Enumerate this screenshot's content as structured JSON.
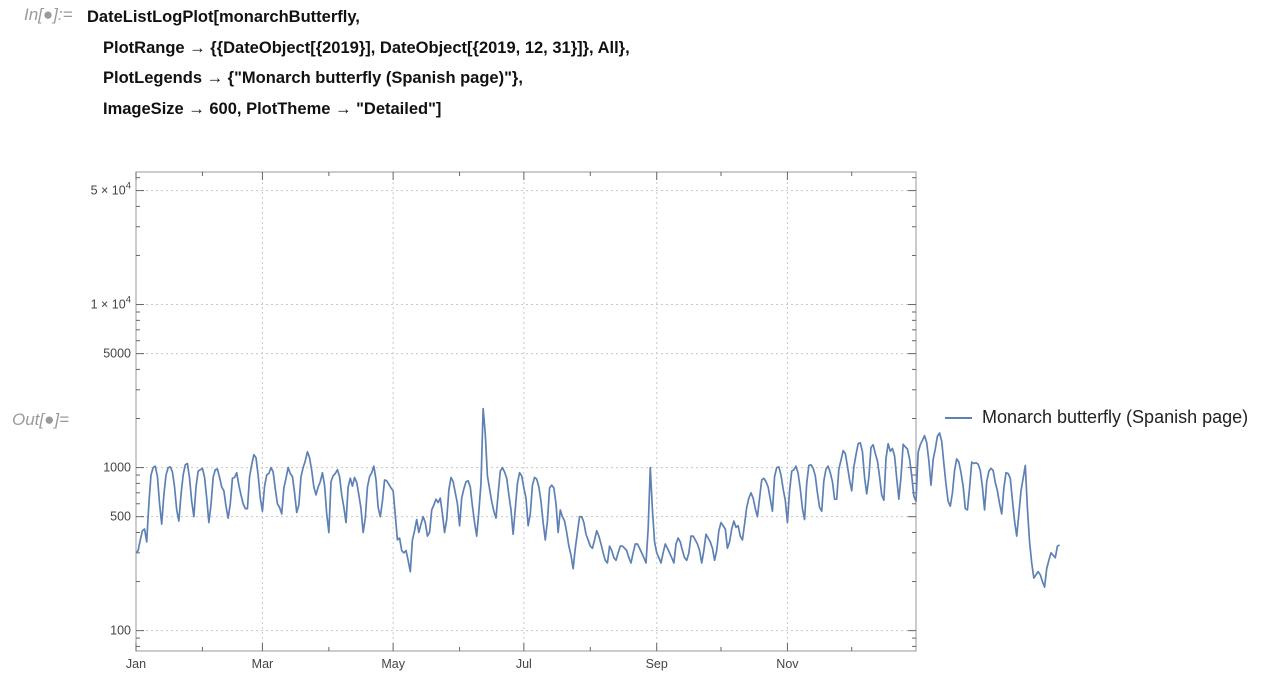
{
  "cell": {
    "in_label": "In[●]:=",
    "out_label": "Out[●]=",
    "code_lines": [
      "DateListLogPlot[monarchButterfly,",
      "PlotRange → {{DateObject[{2019}], DateObject[{2019, 12, 31}]}, All},",
      "PlotLegends → {\"Monarch butterfly (Spanish page)\"},",
      "ImageSize → 600, PlotTheme → \"Detailed\"]"
    ]
  },
  "colors": {
    "series": "#5e81b5",
    "grid": "#c8c8c8",
    "frame": "#999999",
    "tick_text": "#444444"
  },
  "chart_data": {
    "type": "line",
    "title": "",
    "xlabel": "",
    "ylabel": "",
    "scale": "log",
    "grid": true,
    "legend_position": "right",
    "xlim": [
      "2019-01-01",
      "2019-12-31"
    ],
    "ylim": [
      75,
      65000
    ],
    "x_ticks": [
      {
        "date": "2019-01-01",
        "label": "Jan"
      },
      {
        "date": "2019-03-01",
        "label": "Mar"
      },
      {
        "date": "2019-05-01",
        "label": "May"
      },
      {
        "date": "2019-07-01",
        "label": "Jul"
      },
      {
        "date": "2019-09-01",
        "label": "Sep"
      },
      {
        "date": "2019-11-01",
        "label": "Nov"
      }
    ],
    "y_ticks": [
      {
        "value": 100,
        "mantissa": "100",
        "exponent": ""
      },
      {
        "value": 500,
        "mantissa": "500",
        "exponent": ""
      },
      {
        "value": 1000,
        "mantissa": "1000",
        "exponent": ""
      },
      {
        "value": 5000,
        "mantissa": "5000",
        "exponent": ""
      },
      {
        "value": 10000,
        "mantissa": "1 × 10",
        "exponent": "4"
      },
      {
        "value": 50000,
        "mantissa": "5 × 10",
        "exponent": "4"
      }
    ],
    "series": [
      {
        "name": "Monarch butterfly (Spanish page)",
        "x_start": "2019-01-01",
        "x_step_days": 1,
        "values": [
          300,
          310,
          360,
          410,
          420,
          350,
          600,
          900,
          1000,
          1020,
          880,
          600,
          450,
          680,
          900,
          1000,
          1010,
          940,
          760,
          550,
          470,
          680,
          900,
          1040,
          1060,
          860,
          620,
          500,
          760,
          950,
          970,
          990,
          870,
          650,
          460,
          590,
          870,
          970,
          980,
          870,
          760,
          720,
          580,
          490,
          600,
          860,
          870,
          930,
          780,
          680,
          600,
          560,
          560,
          880,
          1040,
          1200,
          1150,
          900,
          650,
          540,
          770,
          900,
          920,
          1000,
          940,
          740,
          600,
          570,
          520,
          750,
          860,
          1000,
          920,
          880,
          700,
          530,
          590,
          880,
          1000,
          1100,
          1250,
          1150,
          960,
          760,
          680,
          760,
          820,
          930,
          780,
          520,
          400,
          820,
          890,
          920,
          970,
          880,
          680,
          570,
          460,
          760,
          860,
          770,
          870,
          810,
          680,
          560,
          400,
          490,
          760,
          880,
          930,
          1020,
          840,
          570,
          500,
          620,
          840,
          830,
          790,
          750,
          720,
          510,
          360,
          370,
          310,
          300,
          310,
          270,
          230,
          360,
          410,
          480,
          400,
          450,
          500,
          460,
          380,
          400,
          550,
          590,
          640,
          610,
          650,
          520,
          400,
          480,
          730,
          870,
          820,
          700,
          600,
          440,
          650,
          740,
          820,
          830,
          760,
          580,
          460,
          380,
          540,
          800,
          2300,
          1600,
          890,
          740,
          620,
          540,
          490,
          690,
          950,
          1000,
          940,
          860,
          680,
          550,
          390,
          560,
          800,
          930,
          890,
          750,
          650,
          440,
          520,
          780,
          870,
          850,
          760,
          620,
          460,
          360,
          470,
          750,
          780,
          750,
          600,
          400,
          550,
          500,
          470,
          400,
          330,
          290,
          240,
          320,
          400,
          500,
          500,
          460,
          390,
          360,
          330,
          320,
          360,
          410,
          380,
          340,
          300,
          270,
          260,
          330,
          310,
          280,
          270,
          300,
          330,
          330,
          320,
          310,
          280,
          260,
          300,
          340,
          340,
          320,
          300,
          280,
          260,
          420,
          1000,
          550,
          350,
          300,
          280,
          260,
          300,
          340,
          320,
          300,
          280,
          260,
          340,
          370,
          350,
          310,
          280,
          270,
          300,
          380,
          380,
          360,
          340,
          310,
          260,
          310,
          390,
          370,
          350,
          320,
          270,
          310,
          410,
          460,
          440,
          420,
          320,
          350,
          420,
          470,
          430,
          440,
          380,
          360,
          450,
          570,
          650,
          700,
          650,
          560,
          500,
          650,
          840,
          860,
          820,
          760,
          640,
          540,
          880,
          1000,
          1010,
          900,
          740,
          630,
          460,
          720,
          950,
          970,
          1020,
          920,
          740,
          560,
          480,
          800,
          1030,
          1040,
          990,
          890,
          700,
          570,
          540,
          830,
          980,
          1020,
          930,
          820,
          640,
          640,
          980,
          1110,
          1270,
          1220,
          1020,
          840,
          720,
          1010,
          1200,
          1400,
          1420,
          1250,
          870,
          690,
          870,
          1330,
          1380,
          1220,
          1100,
          880,
          680,
          630,
          1140,
          1400,
          1260,
          1310,
          1180,
          860,
          640,
          880,
          1390,
          1340,
          1300,
          1130,
          890,
          670,
          620,
          1240,
          1380,
          1470,
          1570,
          1420,
          1100,
          780,
          1120,
          1300,
          1560,
          1630,
          1450,
          1060,
          790,
          620,
          580,
          700,
          960,
          1130,
          1080,
          930,
          770,
          560,
          550,
          750,
          1080,
          1060,
          1070,
          1050,
          960,
          760,
          550,
          820,
          950,
          990,
          960,
          810,
          720,
          600,
          520,
          750,
          930,
          920,
          860,
          630,
          470,
          380,
          520,
          720,
          860,
          1030,
          560,
          350,
          260,
          210,
          220,
          230,
          220,
          200,
          185,
          240,
          270,
          300,
          290,
          280,
          330,
          335
        ]
      }
    ]
  }
}
